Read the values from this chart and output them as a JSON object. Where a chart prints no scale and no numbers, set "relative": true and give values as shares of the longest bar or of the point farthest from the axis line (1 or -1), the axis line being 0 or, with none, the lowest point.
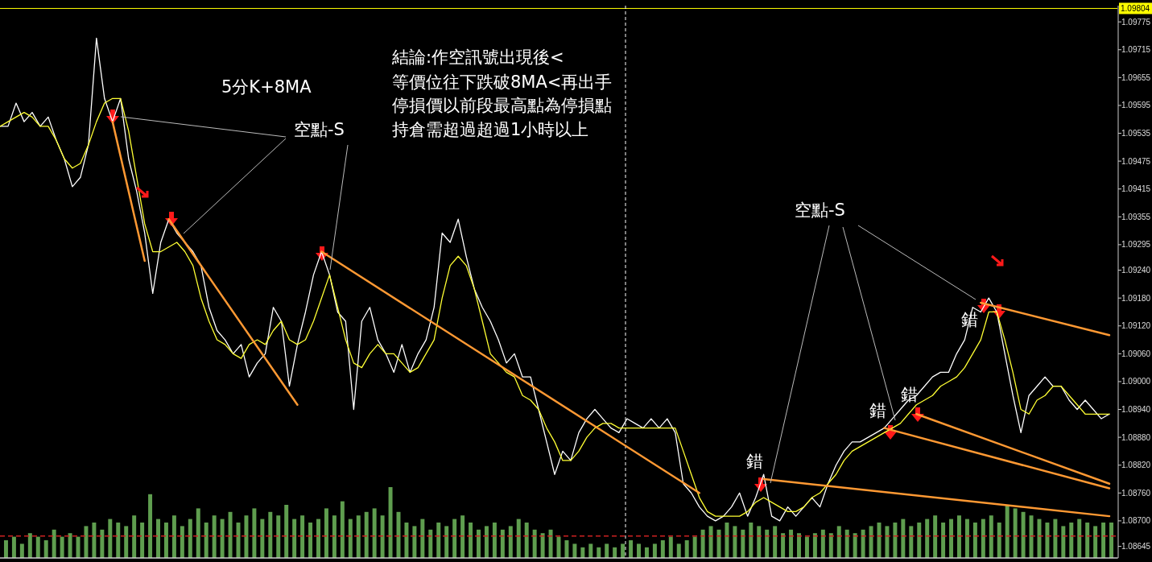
{
  "chart_data": [
    {
      "type": "bar",
      "relative": true,
      "categories": [
        null,
        null,
        null,
        null,
        null,
        null,
        null,
        null,
        null,
        null,
        null,
        null,
        null,
        null,
        null,
        null,
        null,
        null,
        null,
        null,
        null,
        null,
        null,
        null,
        null,
        null,
        null,
        null,
        null,
        null,
        null,
        null,
        null,
        null,
        null,
        null,
        null,
        null,
        null,
        null,
        null,
        null,
        null,
        null,
        null,
        null,
        null,
        null,
        null,
        null,
        null,
        null,
        null,
        null,
        null,
        null,
        null,
        null,
        null,
        null,
        null,
        null,
        null,
        null,
        null,
        null,
        null,
        null,
        null,
        null,
        null,
        null,
        null,
        null,
        null,
        null,
        null,
        null,
        null,
        null,
        null,
        null,
        null,
        null,
        null,
        null,
        null,
        null,
        null,
        null,
        null,
        null,
        null,
        null,
        null,
        null,
        null,
        null,
        null,
        null,
        null,
        null,
        null,
        null,
        null,
        null,
        null,
        null,
        null,
        null,
        null,
        null,
        null,
        null,
        null,
        null,
        null,
        null,
        null,
        null,
        null,
        null,
        null,
        null,
        null,
        null,
        null,
        null,
        null,
        null,
        null,
        null,
        null,
        null,
        null,
        null,
        null,
        null,
        null
      ],
      "color": "#5f9e4f",
      "values": [
        0.25,
        0.3,
        0.2,
        0.35,
        0.3,
        0.25,
        0.4,
        0.3,
        0.35,
        0.3,
        0.45,
        0.5,
        0.4,
        0.55,
        0.5,
        0.45,
        0.6,
        0.5,
        0.9,
        0.55,
        0.5,
        0.6,
        0.45,
        0.55,
        0.7,
        0.5,
        0.6,
        0.55,
        0.65,
        0.5,
        0.6,
        0.7,
        0.55,
        0.65,
        0.6,
        0.75,
        0.55,
        0.6,
        0.5,
        0.55,
        0.7,
        0.6,
        0.8,
        0.55,
        0.6,
        0.65,
        0.7,
        0.6,
        1,
        0.65,
        0.5,
        0.45,
        0.55,
        0.4,
        0.5,
        0.45,
        0.55,
        0.6,
        0.5,
        0.4,
        0.45,
        0.5,
        0.4,
        0.45,
        0.55,
        0.5,
        0.4,
        0.35,
        0.4,
        0.3,
        0.25,
        0.2,
        0.15,
        0.2,
        0.15,
        0.2,
        0.15,
        0.2,
        0.25,
        0.2,
        0.15,
        0.2,
        0.25,
        0.3,
        0.2,
        0.25,
        0.3,
        0.4,
        0.45,
        0.4,
        0.5,
        0.45,
        0.4,
        0.5,
        0.45,
        0.4,
        0.45,
        0.35,
        0.4,
        0.35,
        0.3,
        0.35,
        0.4,
        0.35,
        0.45,
        0.4,
        0.35,
        0.4,
        0.45,
        0.5,
        0.45,
        0.5,
        0.55,
        0.45,
        0.5,
        0.55,
        0.6,
        0.5,
        0.55,
        0.6,
        0.55,
        0.5,
        0.55,
        0.6,
        0.5,
        0.75,
        0.7,
        0.65,
        0.6,
        0.55,
        0.5,
        0.55,
        0.45,
        0.5,
        0.55,
        0.5,
        0.45,
        0.5,
        0.5
      ],
      "ref_lines": [
        {
          "axis": "y",
          "value": 0.31,
          "color": "#cc2222",
          "line_style": "dashed"
        }
      ]
    },
    {
      "type": "line",
      "tick_labels": "y",
      "marker": "none",
      "line_style": "solid",
      "categories": [
        null,
        null,
        null,
        null,
        null,
        null,
        null,
        null,
        null,
        null,
        null,
        null,
        null,
        null,
        null,
        null,
        null,
        null,
        null,
        null,
        null,
        null,
        null,
        null,
        null,
        null,
        null,
        null,
        null,
        null,
        null,
        null,
        null,
        null,
        null,
        null,
        null,
        null,
        null,
        null,
        null,
        null,
        null,
        null,
        null,
        null,
        null,
        null,
        null,
        null,
        null,
        null,
        null,
        null,
        null,
        null,
        null,
        null,
        null,
        null,
        null,
        null,
        null,
        null,
        null,
        null,
        null,
        null,
        null,
        null,
        null,
        null,
        null,
        null,
        null,
        null,
        null,
        null,
        null,
        null,
        null,
        null,
        null,
        null,
        null,
        null,
        null,
        null,
        null,
        null,
        null,
        null,
        null,
        null,
        null,
        null,
        null,
        null,
        null,
        null,
        null,
        null,
        null,
        null,
        null,
        null,
        null,
        null,
        null,
        null,
        null,
        null,
        null,
        null,
        null,
        null,
        null,
        null,
        null,
        null,
        null,
        null,
        null,
        null,
        null,
        null,
        null,
        null,
        null,
        null,
        null,
        null,
        null,
        null,
        null,
        null,
        null,
        null,
        null
      ],
      "ylim": [
        1.0862,
        1.0981
      ],
      "yticks": [
        1.09775,
        1.09715,
        1.09655,
        1.09595,
        1.09535,
        1.09475,
        1.09415,
        1.09355,
        1.09295,
        {
          "value": 1.0924,
          "label": "1.09240"
        },
        {
          "value": 1.0918,
          "label": "1.09180"
        },
        {
          "value": 1.0912,
          "label": "1.09120"
        },
        {
          "value": 1.0906,
          "label": "1.09060"
        },
        {
          "value": 1.09,
          "label": "1.09000"
        },
        {
          "value": 1.0894,
          "label": "1.08940"
        },
        {
          "value": 1.0888,
          "label": "1.08880"
        },
        {
          "value": 1.0882,
          "label": "1.08820"
        },
        {
          "value": 1.0876,
          "label": "1.08760"
        },
        {
          "value": 1.087,
          "label": "1.08700"
        },
        1.08645
      ],
      "series": [
        {
          "color": "#ffffff",
          "values": [
            1.0955,
            1.0955,
            1.096,
            1.0956,
            1.0958,
            1.0955,
            1.0957,
            1.0952,
            1.0948,
            1.0942,
            1.0944,
            1.0951,
            1.0974,
            1.0961,
            1.0956,
            1.0961,
            1.0948,
            1.0941,
            1.0932,
            1.0919,
            1.093,
            1.0935,
            1.0932,
            1.093,
            1.0928,
            1.0925,
            1.0916,
            1.0911,
            1.0909,
            1.0906,
            1.0908,
            1.0901,
            1.0904,
            1.0906,
            1.0916,
            1.0913,
            1.0899,
            1.0908,
            1.0915,
            1.0923,
            1.0928,
            1.0923,
            1.0915,
            1.0913,
            1.0894,
            1.0913,
            1.0916,
            1.0909,
            1.0906,
            1.0902,
            1.0908,
            1.0902,
            1.0906,
            1.0909,
            1.0916,
            1.0932,
            1.093,
            1.0935,
            1.0927,
            1.092,
            1.0916,
            1.0913,
            1.0909,
            1.0904,
            1.0906,
            1.0901,
            1.0901,
            1.0894,
            1.0887,
            1.088,
            1.0885,
            1.0883,
            1.0889,
            1.0892,
            1.0894,
            1.0892,
            1.089,
            1.0889,
            1.0892,
            1.0891,
            1.089,
            1.0892,
            1.089,
            1.0892,
            1.0889,
            1.0878,
            1.0876,
            1.0873,
            1.0871,
            1.087,
            1.0871,
            1.0873,
            1.0876,
            1.0871,
            1.0875,
            1.088,
            1.0871,
            1.087,
            1.0873,
            1.0871,
            1.0873,
            1.0875,
            1.0873,
            1.0878,
            1.0882,
            1.0885,
            1.0887,
            1.0887,
            1.0888,
            1.0889,
            1.089,
            1.0892,
            1.0894,
            1.0896,
            1.0897,
            1.0899,
            1.0901,
            1.0902,
            1.0902,
            1.0906,
            1.0909,
            1.0916,
            1.0915,
            1.0918,
            1.0915,
            1.0906,
            1.0897,
            1.0889,
            1.0897,
            1.0899,
            1.0901,
            1.0899,
            1.0899,
            1.0896,
            1.0894,
            1.0896,
            1.0894,
            1.0892,
            1.0893
          ]
        },
        {
          "color": "#ffff33",
          "values": [
            1.0955,
            1.0956,
            1.0957,
            1.0958,
            1.0957,
            1.0955,
            1.0955,
            1.0952,
            1.0948,
            1.0946,
            1.0947,
            1.0951,
            1.0956,
            1.096,
            1.0961,
            1.0961,
            1.0954,
            1.0944,
            1.0934,
            1.0928,
            1.0928,
            1.0929,
            1.093,
            1.0928,
            1.0925,
            1.0918,
            1.0913,
            1.0909,
            1.0908,
            1.0906,
            1.0905,
            1.0908,
            1.0909,
            1.0908,
            1.0911,
            1.0913,
            1.0909,
            1.0908,
            1.0909,
            1.0913,
            1.0918,
            1.0923,
            1.0916,
            1.0909,
            1.0904,
            1.0903,
            1.0906,
            1.0908,
            1.0906,
            1.0906,
            1.0904,
            1.0902,
            1.0903,
            1.0906,
            1.0909,
            1.0918,
            1.0925,
            1.0927,
            1.0925,
            1.092,
            1.0913,
            1.0906,
            1.0904,
            1.0902,
            1.0901,
            1.0897,
            1.0896,
            1.0894,
            1.089,
            1.0887,
            1.0883,
            1.0883,
            1.0885,
            1.0888,
            1.089,
            1.0891,
            1.0891,
            1.089,
            1.089,
            1.089,
            1.089,
            1.089,
            1.089,
            1.089,
            1.089,
            1.0885,
            1.088,
            1.0875,
            1.0872,
            1.0871,
            1.0871,
            1.0871,
            1.0871,
            1.0872,
            1.0874,
            1.0875,
            1.0874,
            1.0873,
            1.0872,
            1.0872,
            1.0873,
            1.0875,
            1.0876,
            1.0878,
            1.088,
            1.0883,
            1.0885,
            1.0886,
            1.0887,
            1.0888,
            1.0889,
            1.089,
            1.0891,
            1.0893,
            1.0895,
            1.0896,
            1.0897,
            1.0899,
            1.09,
            1.0901,
            1.0903,
            1.0906,
            1.0909,
            1.0915,
            1.0915,
            1.0909,
            1.0902,
            1.0894,
            1.0893,
            1.0896,
            1.0897,
            1.0899,
            1.0899,
            1.0897,
            1.0895,
            1.0893,
            1.0893,
            1.0893,
            1.0893
          ]
        },
        {
          "type": "line",
          "color": "#ff9933",
          "values": [
            null,
            null,
            null,
            null,
            null,
            null,
            null,
            null,
            null,
            null,
            null,
            null,
            null,
            null,
            1.0956,
            null,
            null,
            null,
            1.0926,
            null,
            null,
            null,
            null,
            null,
            null,
            null,
            null,
            null,
            null,
            null,
            null,
            null,
            null,
            null,
            null,
            null,
            null,
            null,
            null,
            null,
            null,
            null,
            null,
            null,
            null,
            null,
            null,
            null,
            null,
            null,
            null,
            null,
            null,
            null,
            null,
            null,
            null,
            null,
            null,
            null,
            null,
            null,
            null,
            null,
            null,
            null,
            null,
            null,
            null,
            null,
            null,
            null,
            null,
            null,
            null,
            null,
            null,
            null,
            null,
            null,
            null,
            null,
            null,
            null,
            null,
            null,
            null,
            null,
            null,
            null,
            null,
            null,
            null,
            null,
            null,
            null,
            null,
            null,
            null,
            null,
            null,
            null,
            null,
            null,
            null,
            null,
            null,
            null,
            null,
            null,
            null,
            null,
            null,
            null,
            null,
            null,
            null,
            null,
            null,
            null,
            null,
            null,
            null,
            null,
            null,
            null,
            null,
            null,
            null,
            null,
            null,
            null,
            null,
            null,
            null,
            null,
            null,
            null,
            null
          ]
        },
        {
          "type": "line",
          "color": "#ff9933",
          "values": [
            null,
            null,
            null,
            null,
            null,
            null,
            null,
            null,
            null,
            null,
            null,
            null,
            null,
            null,
            null,
            null,
            null,
            null,
            null,
            null,
            null,
            1.0935,
            null,
            null,
            null,
            null,
            null,
            null,
            null,
            null,
            null,
            null,
            null,
            null,
            null,
            null,
            null,
            1.0895,
            null,
            null,
            null,
            null,
            null,
            null,
            null,
            null,
            null,
            null,
            null,
            null,
            null,
            null,
            null,
            null,
            null,
            null,
            null,
            null,
            null,
            null,
            null,
            null,
            null,
            null,
            null,
            null,
            null,
            null,
            null,
            null,
            null,
            null,
            null,
            null,
            null,
            null,
            null,
            null,
            null,
            null,
            null,
            null,
            null,
            null,
            null,
            null,
            null,
            null,
            null,
            null,
            null,
            null,
            null,
            null,
            null,
            null,
            null,
            null,
            null,
            null,
            null,
            null,
            null,
            null,
            null,
            null,
            null,
            null,
            null,
            null,
            null,
            null,
            null,
            null,
            null,
            null,
            null,
            null,
            null,
            null,
            null,
            null,
            null,
            null,
            null,
            null,
            null,
            null,
            null,
            null,
            null,
            null,
            null,
            null,
            null,
            null,
            null,
            null,
            null
          ]
        },
        {
          "type": "line",
          "color": "#ff9933",
          "values": [
            null,
            null,
            null,
            null,
            null,
            null,
            null,
            null,
            null,
            null,
            null,
            null,
            null,
            null,
            null,
            null,
            null,
            null,
            null,
            null,
            null,
            null,
            null,
            null,
            null,
            null,
            null,
            null,
            null,
            null,
            null,
            null,
            null,
            null,
            null,
            null,
            null,
            null,
            null,
            null,
            1.0928,
            null,
            null,
            null,
            null,
            null,
            null,
            null,
            null,
            null,
            null,
            null,
            null,
            null,
            null,
            null,
            null,
            null,
            null,
            null,
            null,
            null,
            null,
            null,
            null,
            null,
            null,
            null,
            null,
            null,
            null,
            null,
            null,
            null,
            null,
            null,
            null,
            null,
            null,
            null,
            null,
            null,
            null,
            null,
            null,
            null,
            null,
            1.0876,
            null,
            null,
            null,
            null,
            null,
            null,
            null,
            null,
            null,
            null,
            null,
            null,
            null,
            null,
            null,
            null,
            null,
            null,
            null,
            null,
            null,
            null,
            null,
            null,
            null,
            null,
            null,
            null,
            null,
            null,
            null,
            null,
            null,
            null,
            null,
            null,
            null,
            null,
            null,
            null,
            null,
            null,
            null,
            null,
            null,
            null,
            null,
            null,
            null,
            null,
            null
          ]
        },
        {
          "type": "line",
          "color": "#ff9933",
          "values": [
            null,
            null,
            null,
            null,
            null,
            null,
            null,
            null,
            null,
            null,
            null,
            null,
            null,
            null,
            null,
            null,
            null,
            null,
            null,
            null,
            null,
            null,
            null,
            null,
            null,
            null,
            null,
            null,
            null,
            null,
            null,
            null,
            null,
            null,
            null,
            null,
            null,
            null,
            null,
            null,
            null,
            null,
            null,
            null,
            null,
            null,
            null,
            null,
            null,
            null,
            null,
            null,
            null,
            null,
            null,
            null,
            null,
            null,
            null,
            null,
            null,
            null,
            null,
            null,
            null,
            null,
            null,
            null,
            null,
            null,
            null,
            null,
            null,
            null,
            null,
            null,
            null,
            null,
            null,
            null,
            null,
            null,
            null,
            null,
            null,
            null,
            null,
            null,
            null,
            null,
            null,
            null,
            null,
            null,
            null,
            1.0879,
            null,
            null,
            null,
            null,
            null,
            null,
            null,
            null,
            null,
            null,
            null,
            null,
            null,
            null,
            null,
            null,
            null,
            null,
            null,
            null,
            null,
            null,
            null,
            null,
            null,
            null,
            null,
            null,
            null,
            null,
            null,
            null,
            null,
            null,
            null,
            null,
            null,
            null,
            null,
            null,
            null,
            null,
            1.0871
          ]
        },
        {
          "type": "line",
          "color": "#ff9933",
          "values": [
            null,
            null,
            null,
            null,
            null,
            null,
            null,
            null,
            null,
            null,
            null,
            null,
            null,
            null,
            null,
            null,
            null,
            null,
            null,
            null,
            null,
            null,
            null,
            null,
            null,
            null,
            null,
            null,
            null,
            null,
            null,
            null,
            null,
            null,
            null,
            null,
            null,
            null,
            null,
            null,
            null,
            null,
            null,
            null,
            null,
            null,
            null,
            null,
            null,
            null,
            null,
            null,
            null,
            null,
            null,
            null,
            null,
            null,
            null,
            null,
            null,
            null,
            null,
            null,
            null,
            null,
            null,
            null,
            null,
            null,
            null,
            null,
            null,
            null,
            null,
            null,
            null,
            null,
            null,
            null,
            null,
            null,
            null,
            null,
            null,
            null,
            null,
            null,
            null,
            null,
            null,
            null,
            null,
            null,
            null,
            null,
            null,
            null,
            null,
            null,
            null,
            null,
            null,
            null,
            null,
            null,
            null,
            null,
            null,
            null,
            1.089,
            null,
            null,
            null,
            null,
            null,
            null,
            null,
            null,
            null,
            null,
            null,
            null,
            null,
            null,
            null,
            null,
            null,
            null,
            null,
            null,
            null,
            null,
            null,
            null,
            null,
            null,
            null,
            1.0877
          ]
        },
        {
          "type": "line",
          "color": "#ff9933",
          "values": [
            null,
            null,
            null,
            null,
            null,
            null,
            null,
            null,
            null,
            null,
            null,
            null,
            null,
            null,
            null,
            null,
            null,
            null,
            null,
            null,
            null,
            null,
            null,
            null,
            null,
            null,
            null,
            null,
            null,
            null,
            null,
            null,
            null,
            null,
            null,
            null,
            null,
            null,
            null,
            null,
            null,
            null,
            null,
            null,
            null,
            null,
            null,
            null,
            null,
            null,
            null,
            null,
            null,
            null,
            null,
            null,
            null,
            null,
            null,
            null,
            null,
            null,
            null,
            null,
            null,
            null,
            null,
            null,
            null,
            null,
            null,
            null,
            null,
            null,
            null,
            null,
            null,
            null,
            null,
            null,
            null,
            null,
            null,
            null,
            null,
            null,
            null,
            null,
            null,
            null,
            null,
            null,
            null,
            null,
            null,
            null,
            null,
            null,
            null,
            null,
            null,
            null,
            null,
            null,
            null,
            null,
            null,
            null,
            null,
            null,
            null,
            null,
            null,
            null,
            1.0893,
            null,
            null,
            null,
            null,
            null,
            null,
            null,
            null,
            null,
            null,
            null,
            null,
            null,
            null,
            null,
            null,
            null,
            null,
            null,
            null,
            null,
            null,
            null,
            1.0878
          ]
        },
        {
          "type": "line",
          "color": "#ff9933",
          "values": [
            null,
            null,
            null,
            null,
            null,
            null,
            null,
            null,
            null,
            null,
            null,
            null,
            null,
            null,
            null,
            null,
            null,
            null,
            null,
            null,
            null,
            null,
            null,
            null,
            null,
            null,
            null,
            null,
            null,
            null,
            null,
            null,
            null,
            null,
            null,
            null,
            null,
            null,
            null,
            null,
            null,
            null,
            null,
            null,
            null,
            null,
            null,
            null,
            null,
            null,
            null,
            null,
            null,
            null,
            null,
            null,
            null,
            null,
            null,
            null,
            null,
            null,
            null,
            null,
            null,
            null,
            null,
            null,
            null,
            null,
            null,
            null,
            null,
            null,
            null,
            null,
            null,
            null,
            null,
            null,
            null,
            null,
            null,
            null,
            null,
            null,
            null,
            null,
            null,
            null,
            null,
            null,
            null,
            null,
            null,
            null,
            null,
            null,
            null,
            null,
            null,
            null,
            null,
            null,
            null,
            null,
            null,
            null,
            null,
            null,
            null,
            null,
            null,
            null,
            null,
            null,
            null,
            null,
            null,
            null,
            null,
            null,
            1.0917,
            null,
            null,
            null,
            null,
            null,
            null,
            null,
            null,
            null,
            null,
            null,
            null,
            null,
            null,
            null,
            1.091
          ]
        }
      ],
      "ref_lines": [
        {
          "axis": "y",
          "value": 1.09804,
          "label": "1.09804",
          "color": "#ffff00"
        }
      ],
      "annotations": [
        "5分K+8MA",
        "結論:作空訊號出現後<",
        "等價位往下跌破8MA<再出手",
        "停損價以前段最高點為停損點",
        "持倉需超過超過1小時以上",
        "空點-S",
        "空點-S",
        "錯",
        "錯",
        "錯",
        "錯"
      ]
    }
  ]
}
